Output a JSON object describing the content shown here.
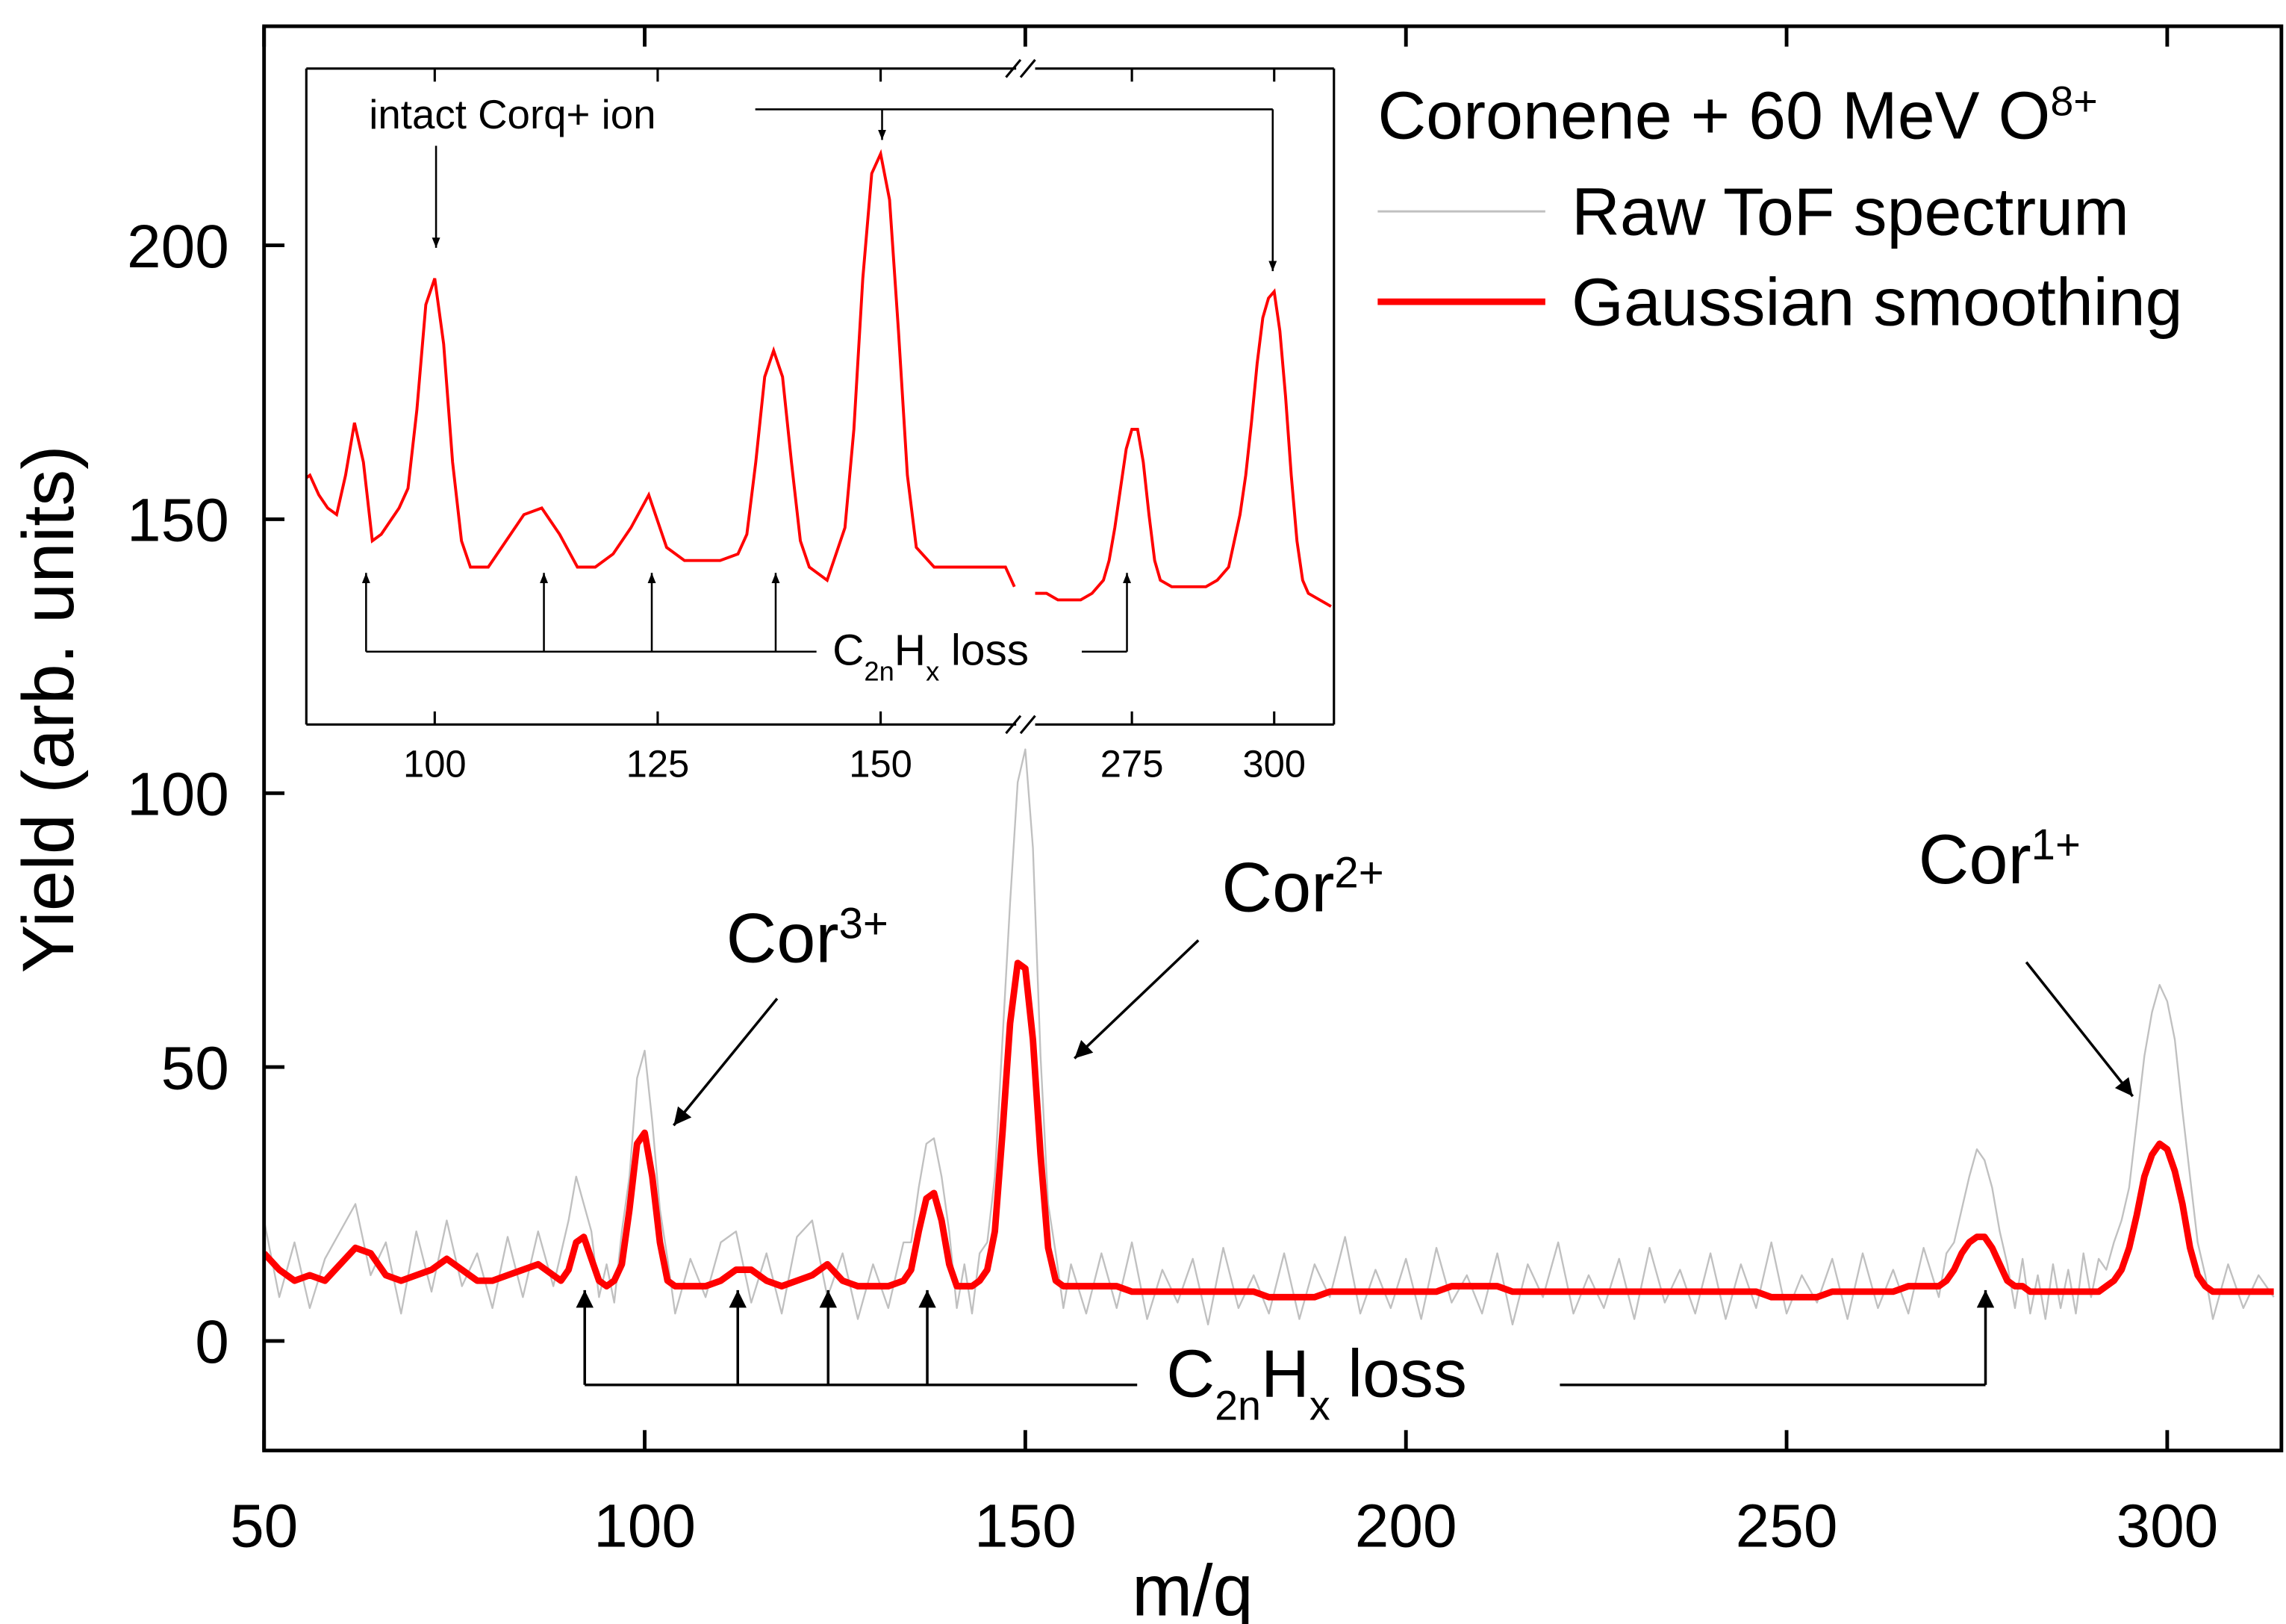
{
  "chart_data": [
    {
      "type": "line",
      "xlabel": "m/q",
      "ylabel": "Yield (arb. units)",
      "xlim": [
        50,
        315
      ],
      "ylim": [
        -20,
        240
      ],
      "xticks": [
        50,
        100,
        150,
        200,
        250,
        300
      ],
      "yticks": [
        0,
        50,
        100,
        150,
        200
      ],
      "x": [
        50,
        52,
        54,
        56,
        58,
        60,
        62,
        64,
        66,
        68,
        70,
        72,
        74,
        76,
        78,
        80,
        82,
        84,
        86,
        88,
        89,
        90,
        91,
        92,
        93,
        94,
        95,
        96,
        97,
        98,
        99,
        100,
        101,
        102,
        103,
        104,
        106,
        108,
        110,
        112,
        114,
        116,
        118,
        120,
        122,
        124,
        126,
        128,
        130,
        132,
        134,
        135,
        136,
        137,
        138,
        139,
        140,
        141,
        142,
        143,
        144,
        145,
        146,
        147,
        148,
        149,
        150,
        151,
        152,
        153,
        154,
        155,
        156,
        158,
        160,
        162,
        164,
        166,
        168,
        170,
        172,
        174,
        176,
        178,
        180,
        182,
        184,
        186,
        188,
        190,
        192,
        194,
        196,
        198,
        200,
        202,
        204,
        206,
        208,
        210,
        212,
        214,
        216,
        218,
        220,
        222,
        224,
        226,
        228,
        230,
        232,
        234,
        236,
        238,
        240,
        242,
        244,
        246,
        248,
        250,
        252,
        254,
        256,
        258,
        260,
        262,
        264,
        266,
        268,
        270,
        271,
        272,
        273,
        274,
        275,
        276,
        277,
        278,
        279,
        280,
        281,
        282,
        283,
        284,
        285,
        286,
        287,
        288,
        289,
        290,
        291,
        292,
        293,
        294,
        295,
        296,
        297,
        298,
        299,
        300,
        301,
        302,
        303,
        304,
        305,
        306,
        308,
        310,
        312,
        314
      ],
      "series": [
        {
          "name": "Raw ToF spectrum",
          "color": "#c0c0c0",
          "values": [
            22,
            8,
            18,
            6,
            15,
            20,
            25,
            12,
            18,
            5,
            20,
            9,
            22,
            10,
            16,
            6,
            19,
            8,
            20,
            10,
            16,
            22,
            30,
            25,
            20,
            8,
            14,
            7,
            20,
            30,
            48,
            53,
            40,
            24,
            15,
            5,
            15,
            8,
            18,
            20,
            7,
            16,
            5,
            19,
            22,
            8,
            16,
            4,
            14,
            6,
            18,
            18,
            28,
            36,
            37,
            30,
            20,
            6,
            14,
            5,
            16,
            18,
            30,
            55,
            80,
            102,
            108,
            90,
            52,
            25,
            16,
            6,
            14,
            5,
            16,
            6,
            18,
            4,
            13,
            7,
            15,
            3,
            17,
            6,
            12,
            5,
            16,
            4,
            14,
            8,
            19,
            5,
            13,
            6,
            15,
            4,
            17,
            7,
            12,
            5,
            16,
            3,
            14,
            8,
            18,
            5,
            12,
            6,
            15,
            4,
            17,
            7,
            13,
            5,
            16,
            4,
            14,
            6,
            18,
            5,
            12,
            7,
            15,
            4,
            16,
            6,
            13,
            5,
            17,
            8,
            16,
            18,
            24,
            30,
            35,
            33,
            28,
            20,
            14,
            6,
            15,
            5,
            12,
            4,
            14,
            6,
            13,
            5,
            16,
            8,
            15,
            13,
            18,
            22,
            28,
            40,
            52,
            60,
            65,
            62,
            55,
            42,
            30,
            18,
            12,
            4,
            14,
            6,
            12,
            8
          ]
        },
        {
          "name": "Gaussian smoothing",
          "color": "#ff0000",
          "values": [
            16,
            13,
            11,
            12,
            11,
            14,
            17,
            16,
            12,
            11,
            12,
            13,
            15,
            13,
            11,
            11,
            12,
            13,
            14,
            12,
            11,
            13,
            18,
            19,
            15,
            11,
            10,
            11,
            14,
            24,
            36,
            38,
            30,
            18,
            11,
            10,
            10,
            10,
            11,
            13,
            13,
            11,
            10,
            11,
            12,
            14,
            11,
            10,
            10,
            10,
            11,
            13,
            20,
            26,
            27,
            22,
            14,
            10,
            10,
            10,
            11,
            13,
            20,
            38,
            58,
            69,
            68,
            55,
            34,
            17,
            11,
            10,
            10,
            10,
            10,
            10,
            9,
            9,
            9,
            9,
            9,
            9,
            9,
            9,
            9,
            8,
            8,
            8,
            8,
            9,
            9,
            9,
            9,
            9,
            9,
            9,
            9,
            10,
            10,
            10,
            10,
            9,
            9,
            9,
            9,
            9,
            9,
            9,
            9,
            9,
            9,
            9,
            9,
            9,
            9,
            9,
            9,
            9,
            8,
            8,
            8,
            8,
            9,
            9,
            9,
            9,
            9,
            10,
            10,
            10,
            11,
            13,
            16,
            18,
            19,
            19,
            17,
            14,
            11,
            10,
            10,
            9,
            9,
            9,
            9,
            9,
            9,
            9,
            9,
            9,
            9,
            10,
            11,
            13,
            17,
            23,
            30,
            34,
            36,
            35,
            31,
            25,
            17,
            12,
            10,
            9,
            9,
            9,
            9,
            9
          ]
        }
      ],
      "legend": {
        "title": "Coronene + 60 MeV O",
        "title_sup": "8+"
      },
      "annotations": [
        {
          "text": "Cor",
          "sup": "3+"
        },
        {
          "text": "Cor",
          "sup": "2+"
        },
        {
          "text": "Cor",
          "sup": "1+"
        },
        {
          "parts": [
            "C",
            "2n",
            "H",
            "x",
            "loss"
          ]
        }
      ]
    },
    {
      "type": "line",
      "color": "#ff0000",
      "ylim": [
        0,
        100
      ],
      "segments": [
        {
          "xlim": [
            85.6,
            165.2
          ],
          "xticks": [
            100,
            125,
            150
          ],
          "x": [
            85,
            86,
            87,
            88,
            89,
            90,
            91,
            92,
            93,
            94,
            95,
            96,
            97,
            98,
            99,
            100,
            101,
            102,
            103,
            104,
            106,
            108,
            110,
            112,
            114,
            116,
            118,
            120,
            122,
            124,
            126,
            128,
            130,
            132,
            134,
            135,
            136,
            137,
            138,
            139,
            140,
            141,
            142,
            144,
            146,
            147,
            148,
            149,
            150,
            151,
            152,
            153,
            154,
            156,
            158,
            160,
            162,
            164,
            165
          ],
          "values": [
            37,
            38,
            35,
            33,
            32,
            38,
            46,
            40,
            28,
            29,
            31,
            33,
            36,
            48,
            64,
            68,
            58,
            40,
            28,
            24,
            24,
            28,
            32,
            33,
            29,
            24,
            24,
            26,
            30,
            35,
            27,
            25,
            25,
            25,
            26,
            29,
            40,
            53,
            57,
            53,
            40,
            28,
            24,
            22,
            30,
            45,
            68,
            84,
            87,
            80,
            60,
            38,
            27,
            24,
            24,
            24,
            24,
            24,
            21
          ]
        },
        {
          "xlim": [
            258,
            310.5
          ],
          "xticks": [
            275,
            300
          ],
          "x": [
            258,
            260,
            262,
            264,
            266,
            268,
            270,
            271,
            272,
            273,
            274,
            275,
            276,
            277,
            278,
            279,
            280,
            282,
            284,
            286,
            288,
            290,
            292,
            293,
            294,
            295,
            296,
            297,
            298,
            299,
            300,
            301,
            302,
            303,
            304,
            305,
            306,
            308,
            310
          ],
          "values": [
            20,
            20,
            19,
            19,
            19,
            20,
            22,
            25,
            30,
            36,
            42,
            45,
            45,
            40,
            32,
            25,
            22,
            21,
            21,
            21,
            21,
            22,
            24,
            28,
            32,
            38,
            46,
            55,
            62,
            65,
            66,
            60,
            50,
            38,
            28,
            22,
            20,
            19,
            18
          ]
        }
      ],
      "annotations": [
        {
          "text": "intact Corq+ ion"
        },
        {
          "parts": [
            "C",
            "2n",
            "H",
            "x",
            "loss"
          ]
        }
      ]
    }
  ]
}
